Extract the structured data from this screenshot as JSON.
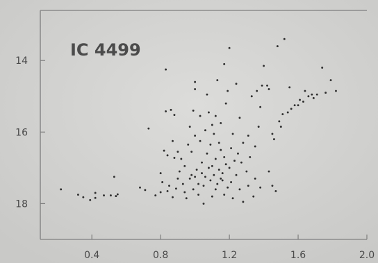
{
  "chart_data": {
    "type": "scatter",
    "title": "",
    "xlabel": "",
    "ylabel": "",
    "annotation": "IC 4499",
    "xlim": [
      0.1,
      2.0
    ],
    "ylim": [
      19.0,
      12.6
    ],
    "y_inverted": true,
    "grid": false,
    "x_ticks": [
      0.4,
      0.8,
      1.2,
      1.6,
      2.0
    ],
    "x_tick_labels": [
      "0.4",
      "0.8",
      "1.2",
      "1.6",
      "2.0"
    ],
    "y_ticks": [
      14,
      16,
      18
    ],
    "y_tick_labels": [
      "14",
      "16",
      "18"
    ],
    "series": [
      {
        "color": "#2f2f2f",
        "points": [
          [
            0.22,
            17.6
          ],
          [
            0.32,
            17.75
          ],
          [
            0.35,
            17.82
          ],
          [
            0.39,
            17.9
          ],
          [
            0.42,
            17.7
          ],
          [
            0.42,
            17.84
          ],
          [
            0.47,
            17.77
          ],
          [
            0.51,
            17.77
          ],
          [
            0.53,
            17.25
          ],
          [
            0.54,
            17.79
          ],
          [
            0.55,
            17.74
          ],
          [
            0.68,
            17.55
          ],
          [
            0.71,
            17.62
          ],
          [
            0.73,
            15.9
          ],
          [
            0.77,
            17.77
          ],
          [
            0.8,
            17.68
          ],
          [
            0.8,
            17.15
          ],
          [
            0.81,
            17.4
          ],
          [
            0.82,
            16.52
          ],
          [
            0.83,
            15.42
          ],
          [
            0.83,
            14.25
          ],
          [
            0.84,
            16.65
          ],
          [
            0.84,
            17.65
          ],
          [
            0.85,
            17.5
          ],
          [
            0.86,
            15.38
          ],
          [
            0.87,
            17.82
          ],
          [
            0.87,
            16.25
          ],
          [
            0.88,
            16.72
          ],
          [
            0.88,
            15.52
          ],
          [
            0.89,
            17.58
          ],
          [
            0.9,
            17.3
          ],
          [
            0.9,
            16.55
          ],
          [
            0.91,
            17.1
          ],
          [
            0.92,
            16.75
          ],
          [
            0.93,
            17.45
          ],
          [
            0.94,
            17.68
          ],
          [
            0.94,
            16.95
          ],
          [
            0.95,
            17.85
          ],
          [
            0.96,
            16.35
          ],
          [
            0.97,
            17.3
          ],
          [
            0.97,
            15.85
          ],
          [
            0.98,
            17.2
          ],
          [
            0.98,
            16.55
          ],
          [
            0.99,
            17.6
          ],
          [
            0.99,
            15.4
          ],
          [
            1.0,
            16.1
          ],
          [
            1.0,
            17.25
          ],
          [
            1.0,
            14.6
          ],
          [
            1.0,
            14.8
          ],
          [
            1.01,
            17.05
          ],
          [
            1.02,
            17.45
          ],
          [
            1.02,
            17.75
          ],
          [
            1.03,
            16.25
          ],
          [
            1.03,
            15.55
          ],
          [
            1.04,
            17.15
          ],
          [
            1.04,
            16.85
          ],
          [
            1.05,
            17.5
          ],
          [
            1.05,
            18.0
          ],
          [
            1.06,
            17.25
          ],
          [
            1.06,
            15.95
          ],
          [
            1.07,
            16.6
          ],
          [
            1.07,
            14.95
          ],
          [
            1.08,
            17.0
          ],
          [
            1.08,
            15.45
          ],
          [
            1.09,
            17.35
          ],
          [
            1.09,
            16.35
          ],
          [
            1.1,
            17.8
          ],
          [
            1.1,
            15.8
          ],
          [
            1.1,
            16.95
          ],
          [
            1.11,
            17.2
          ],
          [
            1.11,
            16.05
          ],
          [
            1.12,
            17.6
          ],
          [
            1.12,
            15.55
          ],
          [
            1.12,
            16.75
          ],
          [
            1.13,
            17.45
          ],
          [
            1.13,
            14.55
          ],
          [
            1.14,
            17.05
          ],
          [
            1.14,
            16.3
          ],
          [
            1.15,
            17.3
          ],
          [
            1.15,
            15.75
          ],
          [
            1.15,
            16.5
          ],
          [
            1.16,
            17.15
          ],
          [
            1.16,
            17.35
          ],
          [
            1.17,
            14.1
          ],
          [
            1.17,
            17.75
          ],
          [
            1.17,
            16.7
          ],
          [
            1.18,
            16.9
          ],
          [
            1.18,
            15.2
          ],
          [
            1.19,
            17.55
          ],
          [
            1.19,
            14.85
          ],
          [
            1.2,
            13.65
          ],
          [
            1.2,
            17.0
          ],
          [
            1.21,
            16.45
          ],
          [
            1.21,
            17.4
          ],
          [
            1.22,
            16.05
          ],
          [
            1.22,
            17.85
          ],
          [
            1.23,
            16.8
          ],
          [
            1.24,
            17.2
          ],
          [
            1.24,
            14.65
          ],
          [
            1.25,
            16.6
          ],
          [
            1.26,
            17.6
          ],
          [
            1.26,
            15.6
          ],
          [
            1.27,
            16.85
          ],
          [
            1.28,
            17.95
          ],
          [
            1.28,
            16.3
          ],
          [
            1.3,
            17.1
          ],
          [
            1.31,
            17.5
          ],
          [
            1.31,
            16.1
          ],
          [
            1.32,
            16.7
          ],
          [
            1.33,
            15.0
          ],
          [
            1.34,
            17.8
          ],
          [
            1.35,
            16.4
          ],
          [
            1.35,
            17.3
          ],
          [
            1.36,
            14.85
          ],
          [
            1.37,
            15.85
          ],
          [
            1.38,
            17.55
          ],
          [
            1.38,
            15.3
          ],
          [
            1.39,
            14.7
          ],
          [
            1.4,
            14.15
          ],
          [
            1.42,
            14.7
          ],
          [
            1.43,
            14.8
          ],
          [
            1.43,
            17.1
          ],
          [
            1.45,
            17.5
          ],
          [
            1.45,
            16.05
          ],
          [
            1.46,
            16.2
          ],
          [
            1.47,
            17.65
          ],
          [
            1.48,
            13.6
          ],
          [
            1.49,
            15.7
          ],
          [
            1.5,
            15.85
          ],
          [
            1.51,
            15.5
          ],
          [
            1.52,
            13.4
          ],
          [
            1.54,
            15.45
          ],
          [
            1.55,
            14.75
          ],
          [
            1.56,
            15.35
          ],
          [
            1.58,
            15.25
          ],
          [
            1.6,
            15.25
          ],
          [
            1.61,
            15.1
          ],
          [
            1.63,
            15.15
          ],
          [
            1.64,
            14.85
          ],
          [
            1.66,
            15.0
          ],
          [
            1.68,
            14.95
          ],
          [
            1.69,
            15.05
          ],
          [
            1.71,
            14.95
          ],
          [
            1.74,
            14.2
          ],
          [
            1.76,
            14.9
          ],
          [
            1.79,
            14.55
          ],
          [
            1.82,
            14.85
          ]
        ]
      }
    ]
  }
}
